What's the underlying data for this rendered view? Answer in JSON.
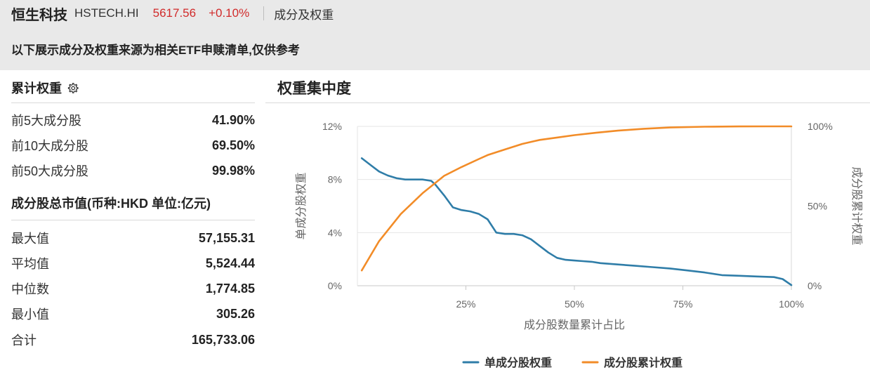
{
  "header": {
    "index_name": "恒生科技",
    "index_code": "HSTECH.HI",
    "price": "5617.56",
    "change": "+0.10%",
    "section": "成分及权重",
    "notice": "以下展示成分及权重来源为相关ETF申赎清单,仅供参考",
    "colors": {
      "background": "#e9e9e9",
      "up": "#d12b2b"
    }
  },
  "cumulative": {
    "title": "累计权重",
    "icon": "gear-icon",
    "rows": [
      {
        "label": "前5大成分股",
        "value": "41.90%"
      },
      {
        "label": "前10大成分股",
        "value": "69.50%"
      },
      {
        "label": "前50大成分股",
        "value": "99.98%"
      }
    ]
  },
  "market_cap": {
    "title": "成分股总市值(币种:HKD 单位:亿元)",
    "rows": [
      {
        "label": "最大值",
        "value": "57,155.31"
      },
      {
        "label": "平均值",
        "value": "5,524.44"
      },
      {
        "label": "中位数",
        "value": "1,774.85"
      },
      {
        "label": "最小值",
        "value": "305.26"
      },
      {
        "label": "合计",
        "value": "165,733.06"
      }
    ]
  },
  "chart_title": "权重集中度",
  "chart_data": {
    "type": "line",
    "xlabel": "成分股数量累计占比",
    "ylabel_left": "单成分股权重",
    "ylabel_right": "成分股累计权重",
    "xlim": [
      0,
      100
    ],
    "x_ticks": [
      "25%",
      "50%",
      "75%",
      "100%"
    ],
    "x_tick_values": [
      25,
      50,
      75,
      100
    ],
    "ylim_left": [
      0,
      12
    ],
    "y_ticks_left": [
      "0%",
      "4%",
      "8%",
      "12%"
    ],
    "y_tick_values_left": [
      0,
      4,
      8,
      12
    ],
    "ylim_right": [
      0,
      100
    ],
    "y_ticks_right": [
      "0%",
      "50%",
      "100%"
    ],
    "y_tick_values_right": [
      0,
      50,
      100
    ],
    "grid": true,
    "legend_position": "bottom",
    "series": [
      {
        "name": "单成分股权重",
        "axis": "left",
        "color": "#2f7da8",
        "x": [
          1,
          3,
          5,
          7,
          9,
          11,
          13,
          15,
          17,
          18,
          20,
          22,
          24,
          26,
          28,
          30,
          32,
          34,
          36,
          38,
          40,
          42,
          44,
          46,
          48,
          50,
          52,
          54,
          56,
          60,
          64,
          68,
          72,
          76,
          80,
          84,
          88,
          92,
          96,
          98,
          100
        ],
        "values": [
          9.6,
          9.1,
          8.6,
          8.3,
          8.1,
          8.0,
          8.0,
          8.0,
          7.9,
          7.6,
          6.8,
          5.9,
          5.7,
          5.6,
          5.4,
          5.0,
          4.0,
          3.9,
          3.9,
          3.8,
          3.5,
          3.0,
          2.5,
          2.1,
          1.95,
          1.9,
          1.85,
          1.8,
          1.7,
          1.6,
          1.5,
          1.4,
          1.3,
          1.15,
          1.0,
          0.8,
          0.75,
          0.7,
          0.65,
          0.5,
          0.05
        ]
      },
      {
        "name": "成分股累计权重",
        "axis": "right",
        "color": "#f28c28",
        "x": [
          1,
          5,
          10,
          15,
          20,
          24,
          28,
          30,
          34,
          38,
          42,
          46,
          50,
          55,
          60,
          66,
          72,
          80,
          88,
          94,
          100
        ],
        "values": [
          9.6,
          28,
          45,
          58,
          69,
          74.5,
          79.5,
          82,
          85.5,
          89,
          91.5,
          93,
          94.5,
          96,
          97.3,
          98.5,
          99.3,
          99.8,
          99.95,
          99.98,
          100
        ]
      }
    ]
  }
}
